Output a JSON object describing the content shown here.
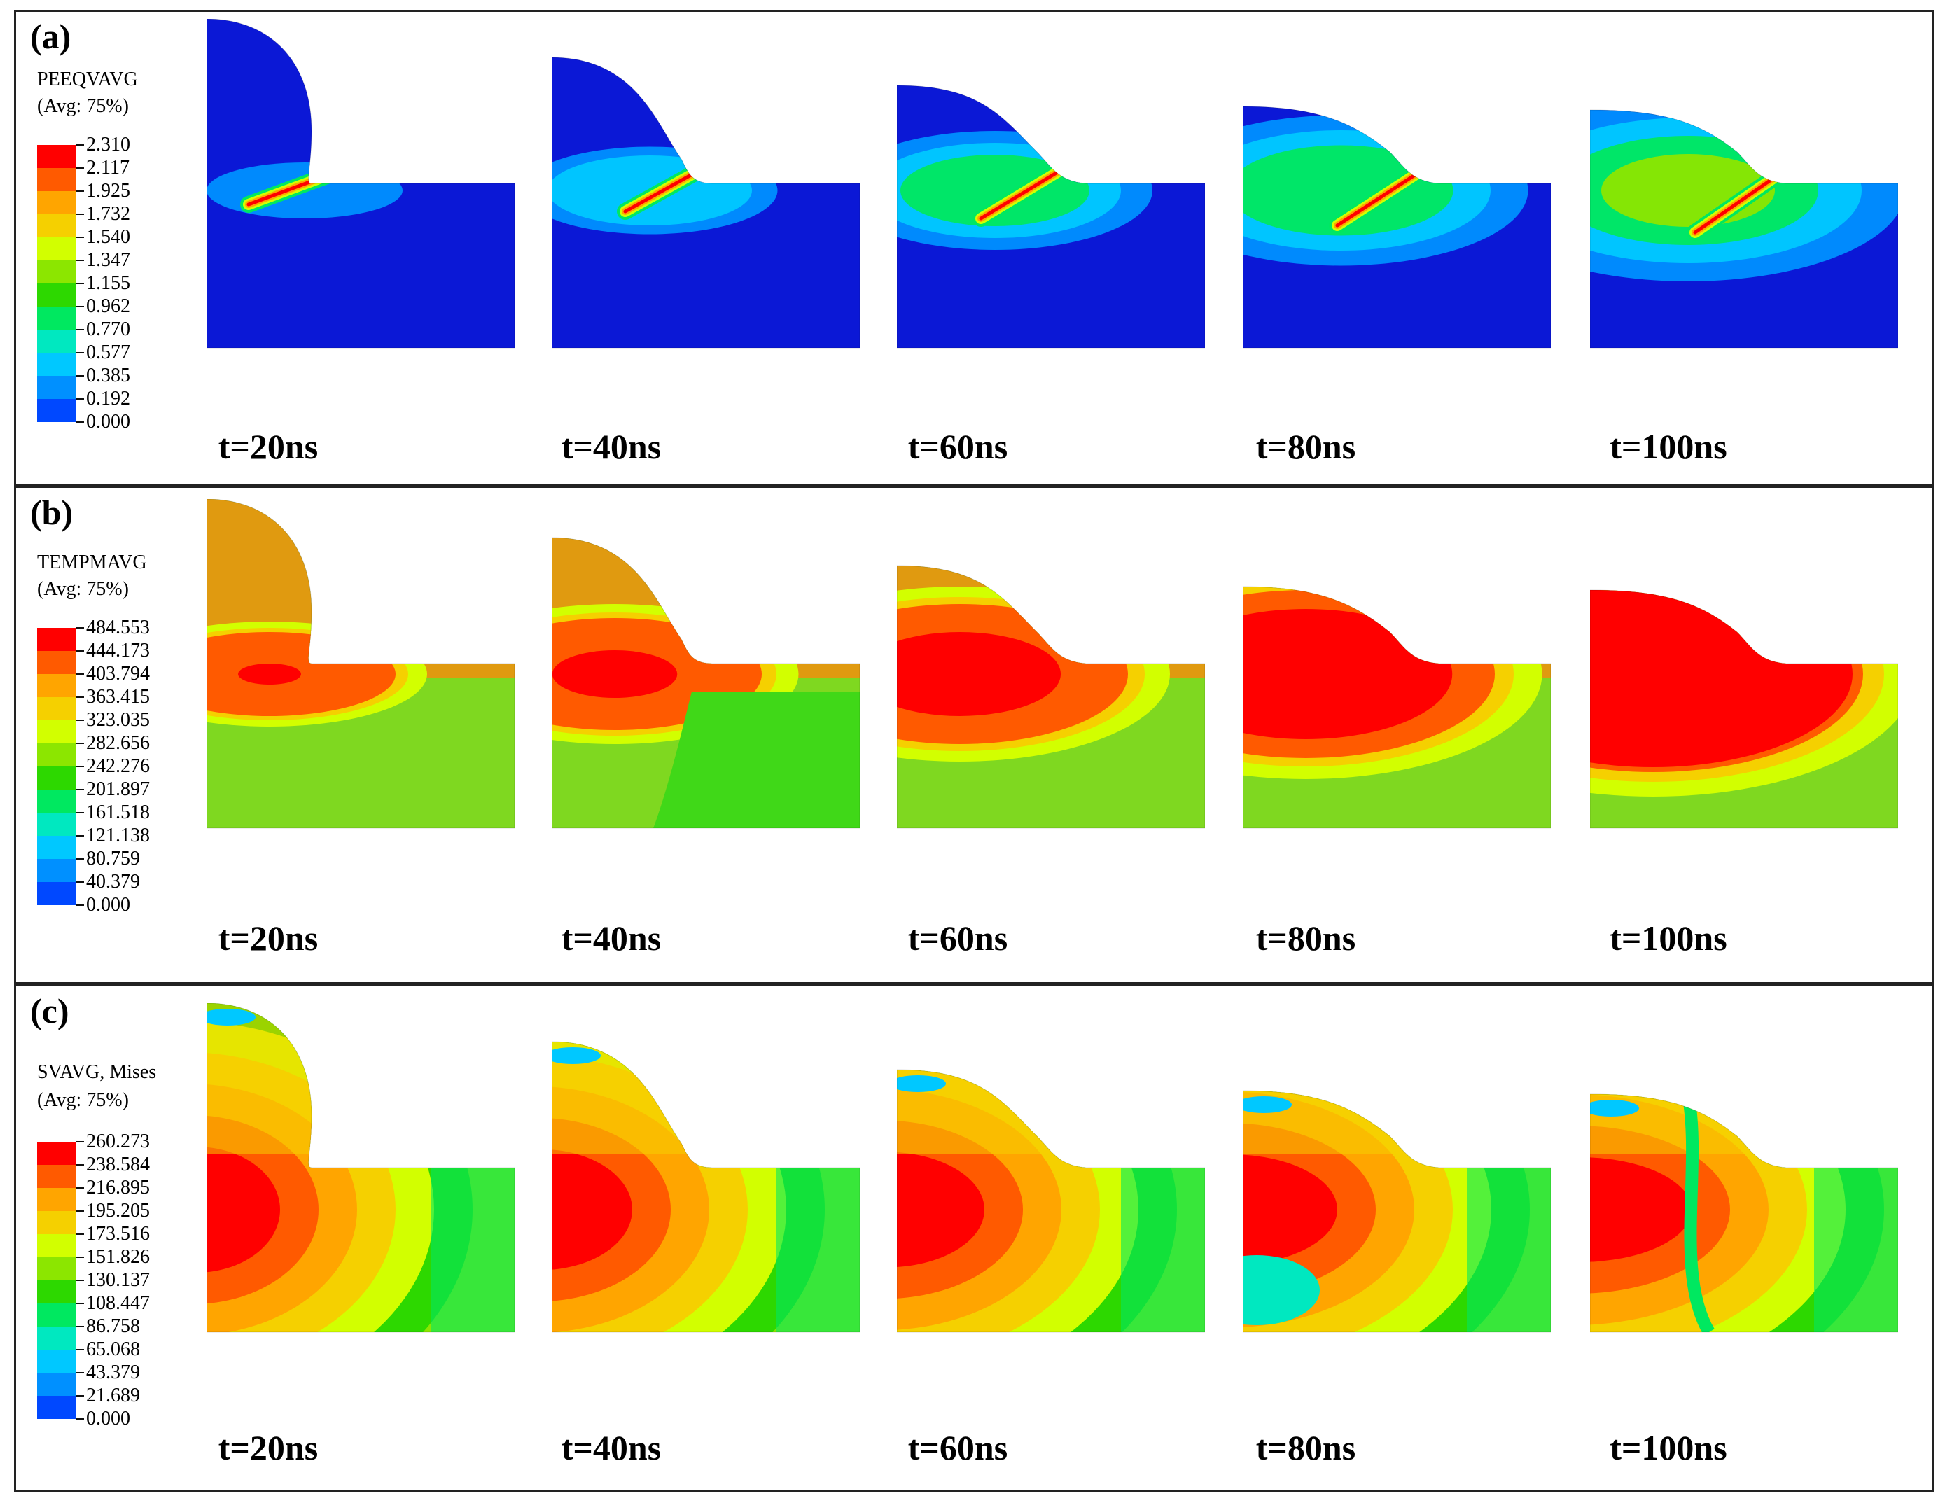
{
  "panels": [
    {
      "letter": "(a)",
      "legend_title_1": "PEEQVAVG",
      "legend_title_2": "(Avg: 75%)",
      "legend_values": [
        "2.310",
        "2.117",
        "1.925",
        "1.732",
        "1.540",
        "1.347",
        "1.155",
        "0.962",
        "0.770",
        "0.577",
        "0.385",
        "0.192",
        "0.000"
      ],
      "times": [
        "t=20ns",
        "t=40ns",
        "t=60ns",
        "t=80ns",
        "t=100ns"
      ]
    },
    {
      "letter": "(b)",
      "legend_title_1": "TEMPMAVG",
      "legend_title_2": "(Avg: 75%)",
      "legend_values": [
        "484.553",
        "444.173",
        "403.794",
        "363.415",
        "323.035",
        "282.656",
        "242.276",
        "201.897",
        "161.518",
        "121.138",
        "80.759",
        "40.379",
        "0.000"
      ],
      "times": [
        "t=20ns",
        "t=40ns",
        "t=60ns",
        "t=80ns",
        "t=100ns"
      ]
    },
    {
      "letter": "(c)",
      "legend_title_1": "SVAVG, Mises",
      "legend_title_2": "(Avg: 75%)",
      "legend_values": [
        "260.273",
        "238.584",
        "216.895",
        "195.205",
        "173.516",
        "151.826",
        "130.137",
        "108.447",
        "86.758",
        "65.068",
        "43.379",
        "21.689",
        "0.000"
      ],
      "times": [
        "t=20ns",
        "t=40ns",
        "t=60ns",
        "t=80ns",
        "t=100ns"
      ]
    }
  ],
  "colors": {
    "legend_scale": [
      "#ff0000",
      "#ff5a00",
      "#ffa500",
      "#f5d000",
      "#d2ff00",
      "#8ce600",
      "#2dd800",
      "#00e860",
      "#00e8c0",
      "#00c8ff",
      "#0090ff",
      "#0048ff",
      "#0000e0"
    ],
    "peeq_bg": "#0b18d6",
    "temp_bg": "#7fd820",
    "temp_droplet": "#e09a10"
  }
}
